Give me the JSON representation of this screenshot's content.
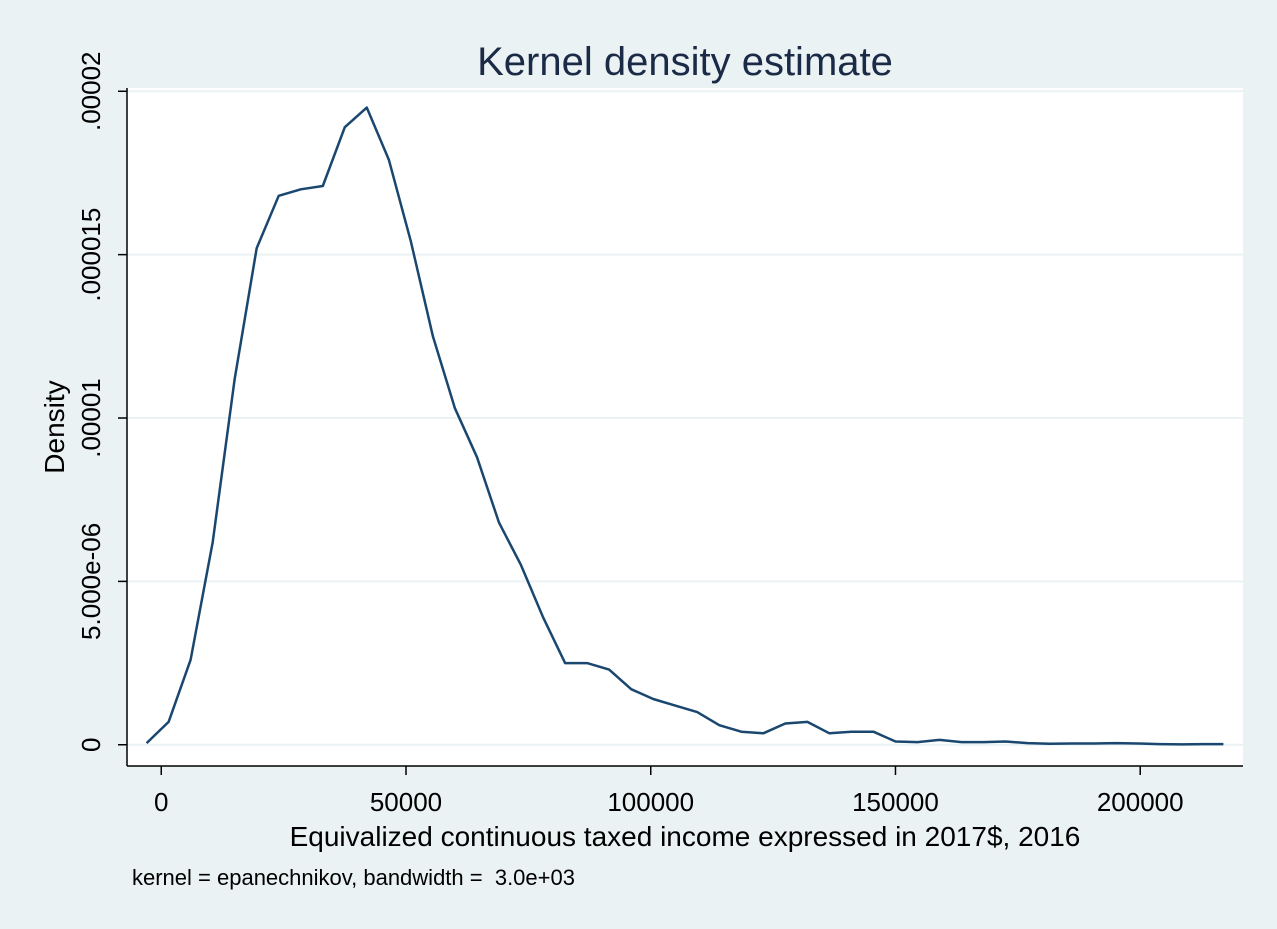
{
  "chart_data": {
    "type": "line",
    "title": "Kernel density estimate",
    "xlabel": "Equivalized continuous taxed income expressed in 2017$, 2016",
    "ylabel": "Density",
    "note": "kernel = epanechnikov, bandwidth =  3.0e+03",
    "xlim": [
      -7000,
      221000
    ],
    "ylim": [
      -6.5e-07,
      2.01e-05
    ],
    "x_ticks": [
      {
        "value": 0,
        "label": "0"
      },
      {
        "value": 50000,
        "label": "50000"
      },
      {
        "value": 100000,
        "label": "100000"
      },
      {
        "value": 150000,
        "label": "150000"
      },
      {
        "value": 200000,
        "label": "200000"
      }
    ],
    "y_ticks": [
      {
        "value": 0,
        "label": "0"
      },
      {
        "value": 5e-06,
        "label": "5.000e-06"
      },
      {
        "value": 1e-05,
        "label": ".00001"
      },
      {
        "value": 1.5e-05,
        "label": ".000015"
      },
      {
        "value": 2e-05,
        "label": ".00002"
      }
    ],
    "grid": true,
    "series": [
      {
        "x": [
          -3000,
          1500,
          6000,
          10500,
          15000,
          19500,
          24000,
          28500,
          33000,
          37500,
          42000,
          46500,
          51000,
          55500,
          60000,
          64500,
          69000,
          73500,
          78000,
          82500,
          87000,
          91500,
          96000,
          100500,
          105000,
          109500,
          114000,
          118500,
          123000,
          127500,
          132000,
          136500,
          141000,
          145500,
          150000,
          154500,
          159000,
          163500,
          168000,
          172500,
          177000,
          181500,
          186000,
          190500,
          195000,
          199500,
          204000,
          208500,
          213000,
          217000
        ],
        "y": [
          5e-08,
          7e-07,
          2.6e-06,
          6.2e-06,
          1.12e-05,
          1.52e-05,
          1.68e-05,
          1.7e-05,
          1.71e-05,
          1.89e-05,
          1.95e-05,
          1.79e-05,
          1.54e-05,
          1.25e-05,
          1.03e-05,
          8.8e-06,
          6.8e-06,
          5.5e-06,
          3.9e-06,
          2.5e-06,
          2.5e-06,
          2.3e-06,
          1.7e-06,
          1.4e-06,
          1.2e-06,
          1e-06,
          6e-07,
          4e-07,
          3.5e-07,
          6.5e-07,
          7e-07,
          3.5e-07,
          4e-07,
          4e-07,
          1e-07,
          8e-08,
          1.5e-07,
          8e-08,
          8e-08,
          1e-07,
          5e-08,
          3e-08,
          4e-08,
          4e-08,
          5e-08,
          4e-08,
          2e-08,
          1e-08,
          2e-08,
          2e-08
        ]
      }
    ]
  }
}
